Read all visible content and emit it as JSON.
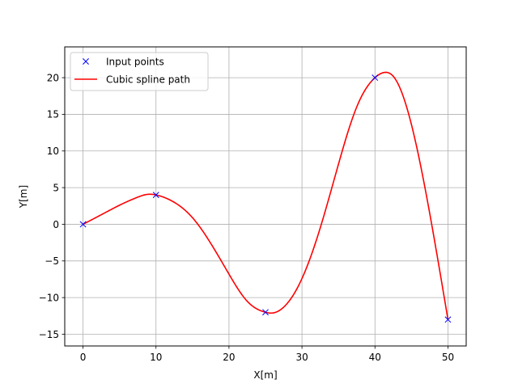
{
  "chart_data": {
    "type": "line",
    "xlabel": "X[m]",
    "ylabel": "Y[m]",
    "xlim": [
      -2.5,
      52.5
    ],
    "ylim": [
      -16.6,
      24.2
    ],
    "xticks": [
      0,
      10,
      20,
      30,
      40,
      50
    ],
    "yticks": [
      -15,
      -10,
      -5,
      0,
      5,
      10,
      15,
      20
    ],
    "grid": true,
    "legend_position": "top-left",
    "series": [
      {
        "name": "Input points",
        "style": "marker",
        "marker": "x",
        "color": "#0000ff",
        "x": [
          0,
          10,
          25,
          40,
          50
        ],
        "y": [
          0,
          4,
          -12,
          20,
          -13
        ]
      },
      {
        "name": "Cubic spline path",
        "style": "line",
        "color": "#ff0000",
        "x": [
          0,
          2.5,
          5,
          7.5,
          9,
          10,
          12.5,
          15,
          17.5,
          20,
          22.5,
          25,
          26,
          27.5,
          30,
          32.5,
          35,
          37.5,
          40,
          41.2,
          42.5,
          45,
          47.5,
          50
        ],
        "y": [
          0,
          1.3,
          2.6,
          3.7,
          4.1,
          4.0,
          3.0,
          0.9,
          -2.6,
          -6.8,
          -10.5,
          -12.0,
          -12.1,
          -11.3,
          -7.4,
          -0.5,
          8.2,
          16.0,
          20.0,
          20.7,
          20.2,
          13.6,
          1.5,
          -13.0
        ]
      }
    ]
  }
}
